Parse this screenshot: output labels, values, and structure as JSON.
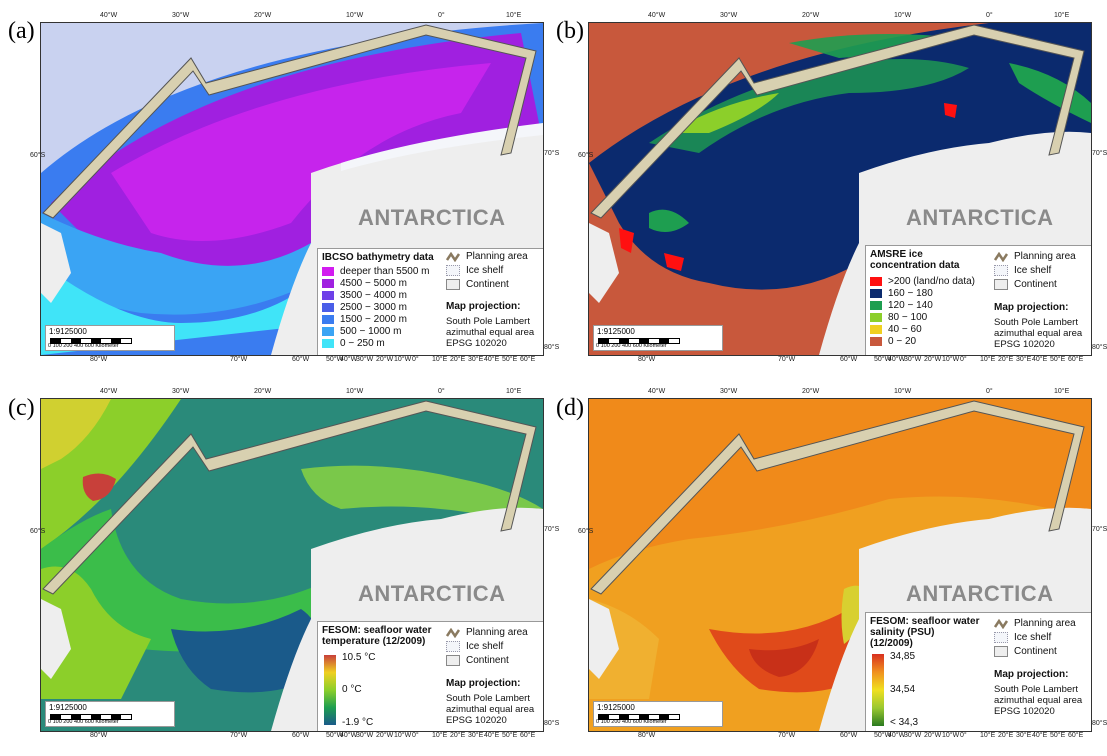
{
  "panels": {
    "a": {
      "letter": "(a)",
      "legend_title": "IBCSO bathymetry data",
      "classes": [
        {
          "label": "deeper than 5500 m",
          "color": "#d21cf0"
        },
        {
          "label": "4500 − 5000 m",
          "color": "#a020e0"
        },
        {
          "label": "3500 − 4000 m",
          "color": "#6e40e8"
        },
        {
          "label": "2500 − 3000 m",
          "color": "#4a5ee8"
        },
        {
          "label": "1500 − 2000 m",
          "color": "#3a7cf0"
        },
        {
          "label": "500 − 1000 m",
          "color": "#3aa4f4"
        },
        {
          "label": "0 − 250 m",
          "color": "#40e4f8"
        }
      ]
    },
    "b": {
      "letter": "(b)",
      "legend_title": "AMSRE ice\nconcentration data",
      "classes": [
        {
          "label": ">200 (land/no data)",
          "color": "#ff1010"
        },
        {
          "label": "160 − 180",
          "color": "#0b2a6e"
        },
        {
          "label": "120 − 140",
          "color": "#1e9e50"
        },
        {
          "label": "80 − 100",
          "color": "#8ccf2a"
        },
        {
          "label": "40 − 60",
          "color": "#f0d020"
        },
        {
          "label": "0 − 20",
          "color": "#c8583c"
        }
      ]
    },
    "c": {
      "letter": "(c)",
      "legend_title": "FESOM: seafloor water\ntemperature (12/2009)",
      "ramp_labels": [
        "10.5 °C",
        "0 °C",
        "-1.9 °C"
      ],
      "ramp_colors": [
        "#c8403a",
        "#f0d020",
        "#8ccf2a",
        "#1e9e50",
        "#1a5a8a"
      ]
    },
    "d": {
      "letter": "(d)",
      "legend_title": "FESOM: seafloor water\nsalinity (PSU)\n(12/2009)",
      "ramp_labels": [
        "34,85",
        "34,54",
        "< 34,3"
      ],
      "ramp_colors": [
        "#d83020",
        "#f09020",
        "#f0e020",
        "#9ac830",
        "#2a7a20"
      ]
    }
  },
  "common": {
    "planning_area": "Planning area",
    "ice_shelf": "Ice shelf",
    "continent": "Continent",
    "projection_title": "Map projection:",
    "projection_text": "South Pole Lambert\nazimuthal equal area\nEPSG 102020",
    "antarctica": "ANTARCTICA",
    "scale_ratio": "1:9125000",
    "scale_numbers": "0   100  200        400             600 Kilometer",
    "top_ticks": [
      "40°W",
      "30°W",
      "20°W",
      "10°W",
      "0°",
      "10°E"
    ],
    "bottom_ticks": [
      "80°W",
      "70°W",
      "60°W",
      "50°W",
      "40°W",
      "30°W",
      "20°W",
      "10°W",
      "0°",
      "10°E",
      "20°E",
      "30°E",
      "40°E",
      "50°E",
      "60°E"
    ],
    "lat_left": "60°S",
    "lat_right": "70°S",
    "lat_right_bottom": "80°S"
  },
  "colors": {
    "continent": "#eeeeee",
    "ice_shelf": "#f4f6fa",
    "land_mask": "#c9d2f0"
  }
}
